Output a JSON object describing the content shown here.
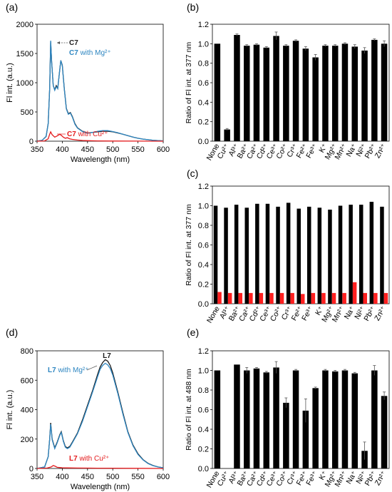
{
  "panel_labels": {
    "a": "(a)",
    "b": "(b)",
    "c": "(c)",
    "d": "(d)",
    "e": "(e)"
  },
  "colors": {
    "mg": "#2e86c1",
    "cu": "#e41a1c",
    "dark": "#1a1a1a",
    "bar": "#000000",
    "red_bar": "#ff2020"
  },
  "chart_data": [
    {
      "id": "a",
      "type": "line",
      "xlabel": "Wavelength (nm)",
      "ylabel": "Fl int. (a.u.)",
      "xlim": [
        350,
        600
      ],
      "ylim": [
        0,
        2000
      ],
      "xticks": [
        "350",
        "400",
        "450",
        "500",
        "550",
        "600"
      ],
      "yticks": [
        "0",
        "500",
        "1000",
        "1500",
        "2000"
      ],
      "annotations": {
        "compound": "C7",
        "mg_prefix": "C7",
        "mg_suffix": " with Mg²⁺",
        "cu_prefix": "C7",
        "cu_suffix": " with Cu²⁺"
      },
      "series": [
        {
          "color": "#1a1a1a",
          "x": [
            350,
            360,
            368,
            372,
            375,
            377,
            379,
            382,
            385,
            388,
            391,
            394,
            397,
            400,
            404,
            408,
            412,
            416,
            420,
            425,
            430,
            440,
            450,
            460,
            470,
            480,
            490,
            500,
            510,
            520,
            530,
            540,
            550,
            560,
            570,
            580,
            590,
            600
          ],
          "y": [
            0,
            15,
            80,
            300,
            900,
            1700,
            1350,
            950,
            880,
            950,
            900,
            1150,
            1380,
            1300,
            900,
            560,
            470,
            490,
            420,
            300,
            230,
            170,
            140,
            150,
            160,
            170,
            170,
            160,
            140,
            120,
            95,
            70,
            50,
            35,
            25,
            15,
            10,
            5
          ]
        },
        {
          "color": "#2e86c1",
          "x": [
            350,
            360,
            368,
            372,
            375,
            377,
            379,
            382,
            385,
            388,
            391,
            394,
            397,
            400,
            404,
            408,
            412,
            416,
            420,
            425,
            430,
            440,
            450,
            460,
            470,
            480,
            490,
            500,
            510,
            520,
            530,
            540,
            550,
            560,
            570,
            580,
            590,
            600
          ],
          "y": [
            0,
            15,
            80,
            300,
            900,
            1720,
            1350,
            950,
            870,
            930,
            900,
            1150,
            1380,
            1290,
            890,
            550,
            460,
            480,
            410,
            290,
            225,
            165,
            135,
            150,
            170,
            180,
            180,
            165,
            145,
            120,
            95,
            70,
            50,
            35,
            25,
            15,
            10,
            5
          ]
        },
        {
          "color": "#e41a1c",
          "x": [
            350,
            365,
            372,
            375,
            377,
            380,
            385,
            390,
            395,
            398,
            402,
            406,
            410,
            415,
            420,
            430,
            440,
            450,
            470,
            500,
            550,
            600
          ],
          "y": [
            0,
            5,
            40,
            120,
            160,
            110,
            70,
            90,
            120,
            100,
            70,
            50,
            60,
            40,
            30,
            20,
            12,
            8,
            5,
            3,
            1,
            0
          ]
        }
      ]
    },
    {
      "id": "b",
      "type": "bar",
      "ylabel": "Ratio of Fl int. at 377 nm",
      "ylim": [
        0,
        1.2
      ],
      "yticks": [
        "0.0",
        "0.2",
        "0.4",
        "0.6",
        "0.8",
        "1.0",
        "1.2"
      ],
      "categories": [
        "None",
        "Cu²⁺",
        "Al³⁺",
        "Ba²⁺",
        "Ca²⁺",
        "Cd²⁺",
        "Ce³⁺",
        "Co²⁺",
        "Cr³⁺",
        "Fe²⁺",
        "Fe³⁺",
        "K⁺",
        "Mg²⁺",
        "Mn²⁺",
        "Na⁺",
        "Ni²⁺",
        "Pb²⁺",
        "Zn²⁺"
      ],
      "values": [
        1.0,
        0.12,
        1.09,
        0.98,
        0.99,
        0.96,
        1.08,
        0.98,
        1.03,
        0.95,
        0.86,
        0.98,
        0.98,
        1.0,
        0.97,
        0.93,
        1.04,
        1.0
      ],
      "errors": [
        0,
        0.01,
        0.01,
        0.01,
        0.01,
        0.01,
        0.04,
        0.01,
        0.01,
        0.02,
        0.03,
        0.01,
        0.01,
        0.01,
        0.02,
        0.03,
        0.01,
        0.03
      ]
    },
    {
      "id": "c",
      "type": "bar",
      "ylabel": "Ratio of Fl int. at 377 nm",
      "ylim": [
        0,
        1.2
      ],
      "yticks": [
        "0.0",
        "0.2",
        "0.4",
        "0.6",
        "0.8",
        "1.0",
        "1.2"
      ],
      "categories": [
        "None",
        "Al³⁺",
        "Ba²⁺",
        "Ca²⁺",
        "Cd²⁺",
        "Ce³⁺",
        "Co²⁺",
        "Cr³⁺",
        "Fe²⁺",
        "Fe³⁺",
        "K⁺",
        "Mg²⁺",
        "Mn²⁺",
        "Na⁺",
        "Ni²⁺",
        "Pb²⁺",
        "Zn²⁺"
      ],
      "series": [
        {
          "color": "#000000",
          "values": [
            1.0,
            0.98,
            1.01,
            0.98,
            1.02,
            1.02,
            0.99,
            1.03,
            0.97,
            0.99,
            0.98,
            0.96,
            1.0,
            1.01,
            1.01,
            1.04,
            0.99
          ]
        },
        {
          "color": "#ff2020",
          "values": [
            0.12,
            0.11,
            0.11,
            0.11,
            0.11,
            0.11,
            0.11,
            0.11,
            0.1,
            0.11,
            0.11,
            0.11,
            0.11,
            0.22,
            0.11,
            0.11,
            0.11
          ]
        }
      ]
    },
    {
      "id": "d",
      "type": "line",
      "xlabel": "Wavelength (nm)",
      "ylabel": "Fl int. (a.u.)",
      "xlim": [
        350,
        600
      ],
      "ylim": [
        0,
        800
      ],
      "xticks": [
        "350",
        "400",
        "450",
        "500",
        "550",
        "600"
      ],
      "yticks": [
        "0",
        "200",
        "400",
        "600",
        "800"
      ],
      "annotations": {
        "compound": "L7",
        "mg_prefix": "L7",
        "mg_suffix": " with Mg²⁺",
        "cu_prefix": "L7",
        "cu_suffix": " with Cu²⁺"
      },
      "series": [
        {
          "color": "#1a1a1a",
          "x": [
            350,
            365,
            372,
            375,
            377,
            380,
            385,
            390,
            395,
            398,
            402,
            406,
            410,
            415,
            420,
            430,
            440,
            450,
            460,
            470,
            475,
            480,
            485,
            490,
            495,
            500,
            510,
            520,
            530,
            540,
            550,
            560,
            570,
            580,
            590,
            600
          ],
          "y": [
            0,
            10,
            80,
            200,
            310,
            200,
            140,
            180,
            230,
            250,
            190,
            150,
            140,
            150,
            180,
            240,
            330,
            430,
            530,
            640,
            690,
            720,
            740,
            730,
            700,
            650,
            520,
            380,
            250,
            160,
            100,
            60,
            35,
            20,
            10,
            5
          ]
        },
        {
          "color": "#2e86c1",
          "x": [
            350,
            365,
            372,
            375,
            377,
            380,
            385,
            390,
            395,
            398,
            402,
            406,
            410,
            415,
            420,
            430,
            440,
            450,
            460,
            470,
            475,
            480,
            485,
            490,
            495,
            500,
            510,
            520,
            530,
            540,
            550,
            560,
            570,
            580,
            590,
            600
          ],
          "y": [
            0,
            10,
            80,
            200,
            300,
            195,
            135,
            175,
            225,
            245,
            185,
            145,
            135,
            145,
            175,
            235,
            320,
            420,
            520,
            625,
            675,
            700,
            715,
            705,
            680,
            635,
            510,
            370,
            245,
            155,
            95,
            58,
            33,
            19,
            10,
            5
          ]
        },
        {
          "color": "#e41a1c",
          "x": [
            350,
            370,
            378,
            382,
            386,
            390,
            396,
            400,
            410,
            430,
            470,
            500,
            550,
            600
          ],
          "y": [
            0,
            3,
            10,
            20,
            15,
            8,
            6,
            5,
            4,
            3,
            2,
            2,
            1,
            0
          ]
        }
      ]
    },
    {
      "id": "e",
      "type": "bar",
      "ylabel": "Ratio of Fl int. at 488 nm",
      "ylim": [
        0,
        1.2
      ],
      "yticks": [
        "0.0",
        "0.2",
        "0.4",
        "0.6",
        "0.8",
        "1.0",
        "1.2"
      ],
      "categories": [
        "None",
        "Cu²⁺",
        "Al³⁺",
        "Ba²⁺",
        "Ca²⁺",
        "Cd²⁺",
        "Ce³⁺",
        "Co²⁺",
        "Cr³⁺",
        "Fe²⁺",
        "Fe³⁺",
        "K⁺",
        "Mg²⁺",
        "Mn²⁺",
        "Na⁺",
        "Ni²⁺",
        "Pb²⁺",
        "Zn²⁺"
      ],
      "values": [
        1.0,
        0.0,
        1.06,
        1.0,
        1.02,
        0.98,
        1.03,
        0.67,
        1.0,
        0.59,
        0.82,
        1.0,
        0.99,
        1.0,
        0.97,
        0.18,
        1.0,
        0.74
      ],
      "errors": [
        0,
        0,
        0,
        0.03,
        0.01,
        0.01,
        0.06,
        0.05,
        0.01,
        0.12,
        0.01,
        0.01,
        0.01,
        0.01,
        0.01,
        0.09,
        0.05,
        0.04
      ]
    }
  ]
}
